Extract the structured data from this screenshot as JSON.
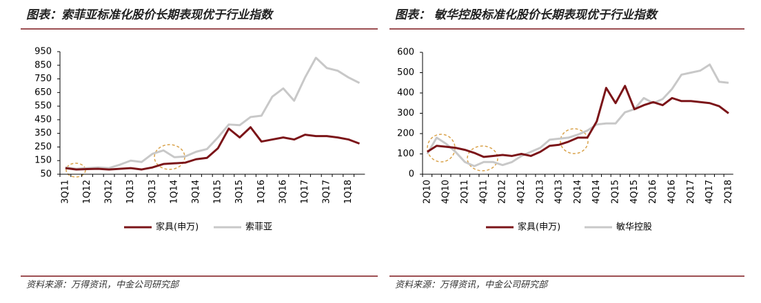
{
  "chart_data": [
    {
      "type": "line",
      "title": "图表：索菲亚标准化股价长期表现优于行业指数",
      "source": "资料来源：万得资讯，中金公司研究部",
      "categories": [
        "3Q11",
        null,
        "1Q12",
        null,
        "3Q12",
        null,
        "1Q13",
        null,
        "3Q13",
        null,
        "1Q14",
        null,
        "3Q14",
        null,
        "1Q15",
        null,
        "3Q15",
        null,
        "1Q16",
        null,
        "3Q16",
        null,
        "1Q17",
        null,
        "3Q17",
        null,
        "1Q18",
        null
      ],
      "series": [
        {
          "name": "家具(申万)",
          "color": "#7b1418",
          "values": [
            95,
            85,
            88,
            90,
            85,
            90,
            95,
            85,
            100,
            125,
            130,
            135,
            160,
            170,
            240,
            385,
            320,
            395,
            290,
            305,
            320,
            305,
            340,
            330,
            330,
            320,
            305,
            275
          ]
        },
        {
          "name": "索菲亚",
          "color": "#c8c8c8",
          "values": [
            100,
            90,
            95,
            100,
            95,
            120,
            150,
            140,
            200,
            225,
            175,
            180,
            215,
            235,
            320,
            415,
            410,
            470,
            480,
            620,
            680,
            590,
            760,
            905,
            830,
            810,
            760,
            720
          ]
        }
      ],
      "ylim": [
        50,
        950
      ],
      "yticks": [
        50,
        150,
        250,
        350,
        450,
        550,
        650,
        750,
        850,
        950
      ]
    },
    {
      "type": "line",
      "title": "图表：  敏华控股标准化股价长期表现优于行业指数",
      "source": "资料来源：万得资讯，中金公司研究部",
      "categories": [
        "2Q10",
        null,
        "4Q10",
        null,
        "2Q11",
        null,
        "4Q11",
        null,
        "2Q12",
        null,
        "4Q12",
        null,
        "2Q13",
        null,
        "4Q13",
        null,
        "2Q14",
        null,
        "4Q14",
        null,
        "2Q15",
        null,
        "4Q15",
        null,
        "2Q16",
        null,
        "4Q16",
        null,
        "2Q17",
        null,
        "4Q17",
        null,
        "2Q18"
      ],
      "series": [
        {
          "name": "家具(申万)",
          "color": "#7b1418",
          "values": [
            110,
            140,
            135,
            130,
            120,
            105,
            85,
            90,
            95,
            90,
            100,
            90,
            110,
            140,
            145,
            160,
            180,
            180,
            260,
            425,
            350,
            435,
            320,
            340,
            355,
            340,
            375,
            360,
            360,
            355,
            350,
            335,
            300
          ]
        },
        {
          "name": "敏华控股",
          "color": "#c8c8c8",
          "values": [
            100,
            180,
            150,
            110,
            60,
            40,
            60,
            60,
            45,
            60,
            90,
            110,
            130,
            170,
            175,
            180,
            195,
            215,
            245,
            250,
            250,
            305,
            320,
            375,
            350,
            370,
            420,
            490,
            500,
            510,
            540,
            455,
            450
          ]
        }
      ],
      "ylim": [
        0,
        600
      ],
      "yticks": [
        0,
        100,
        200,
        300,
        400,
        500,
        600
      ]
    }
  ]
}
